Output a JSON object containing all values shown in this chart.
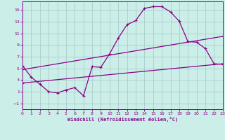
{
  "background_color": "#cceee8",
  "grid_color": "#aacccc",
  "line_color": "#880088",
  "xlabel": "Windchill (Refroidissement éolien,°C)",
  "yticks": [
    -1,
    1,
    3,
    5,
    7,
    9,
    11,
    13,
    15
  ],
  "xticks": [
    0,
    1,
    2,
    3,
    4,
    5,
    6,
    7,
    8,
    9,
    10,
    11,
    12,
    13,
    14,
    15,
    16,
    17,
    18,
    19,
    20,
    21,
    22,
    23
  ],
  "xlim": [
    0,
    23
  ],
  "ylim": [
    -2.0,
    16.5
  ],
  "curve1_x": [
    0,
    1,
    2,
    3,
    4,
    5,
    6,
    7,
    8,
    9,
    10,
    11,
    12,
    13,
    14,
    15,
    16,
    17,
    18,
    19,
    20,
    21,
    22,
    23
  ],
  "curve1_y": [
    5.5,
    3.5,
    2.3,
    1.0,
    0.8,
    1.3,
    1.7,
    0.3,
    5.3,
    5.2,
    7.5,
    10.2,
    12.5,
    13.2,
    15.3,
    15.6,
    15.6,
    14.7,
    13.1,
    9.6,
    9.5,
    8.4,
    5.8,
    5.7
  ],
  "curve2_x": [
    0,
    23
  ],
  "curve2_y": [
    4.8,
    10.5
  ],
  "curve3_x": [
    0,
    23
  ],
  "curve3_y": [
    2.5,
    5.8
  ],
  "marker": "+"
}
